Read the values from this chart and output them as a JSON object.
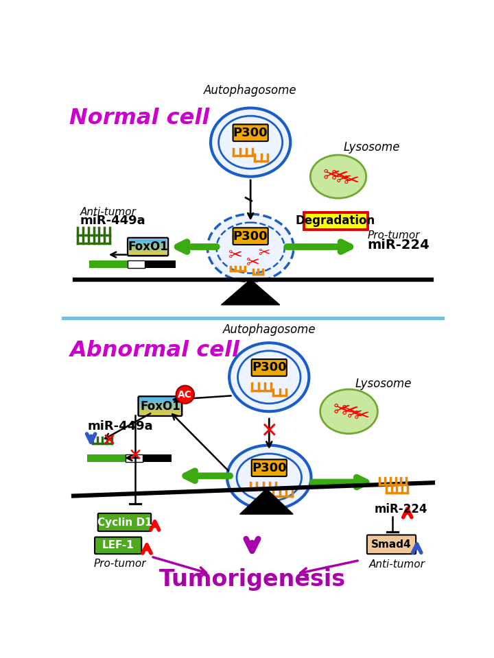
{
  "normal_cell_label": "Normal cell",
  "abnormal_cell_label": "Abnormal cell",
  "label_color": "#cc00cc",
  "autophagosome_label": "Autophagosome",
  "lysosome_label": "Lysosome",
  "degradation_label": "Degradation",
  "p300_label": "P300",
  "foxo1_label": "FoxO1",
  "ac_label": "AC",
  "mir449a_label": "miR-449a",
  "antitumor_label": "Anti-tumor",
  "protumor_label": "Pro-tumor",
  "mir224_label": "miR-224",
  "cyclind1_label": "Cyclin D1",
  "lef1_label": "LEF-1",
  "smad4_label": "Smad4",
  "tumorigenesis_label": "Tumorigenesis",
  "orange_color": "#e8890a",
  "green_color": "#3aaa10",
  "dark_green": "#2d6a10",
  "red_color": "#dd0000",
  "blue_color": "#3355cc",
  "purple_color": "#aa00aa",
  "light_green_lysosome": "#c8e8a0",
  "light_blue_foxo1": "#50b8f0",
  "yellow_foxo1": "#f0d030",
  "p300_bg": "#f0a800",
  "degradation_bg": "#ffff00",
  "degradation_border": "#dd0000",
  "cyclin_bg": "#50aa20",
  "lef_bg": "#50aa20",
  "smad4_bg": "#f0c898",
  "divider_color": "#70c0e0"
}
